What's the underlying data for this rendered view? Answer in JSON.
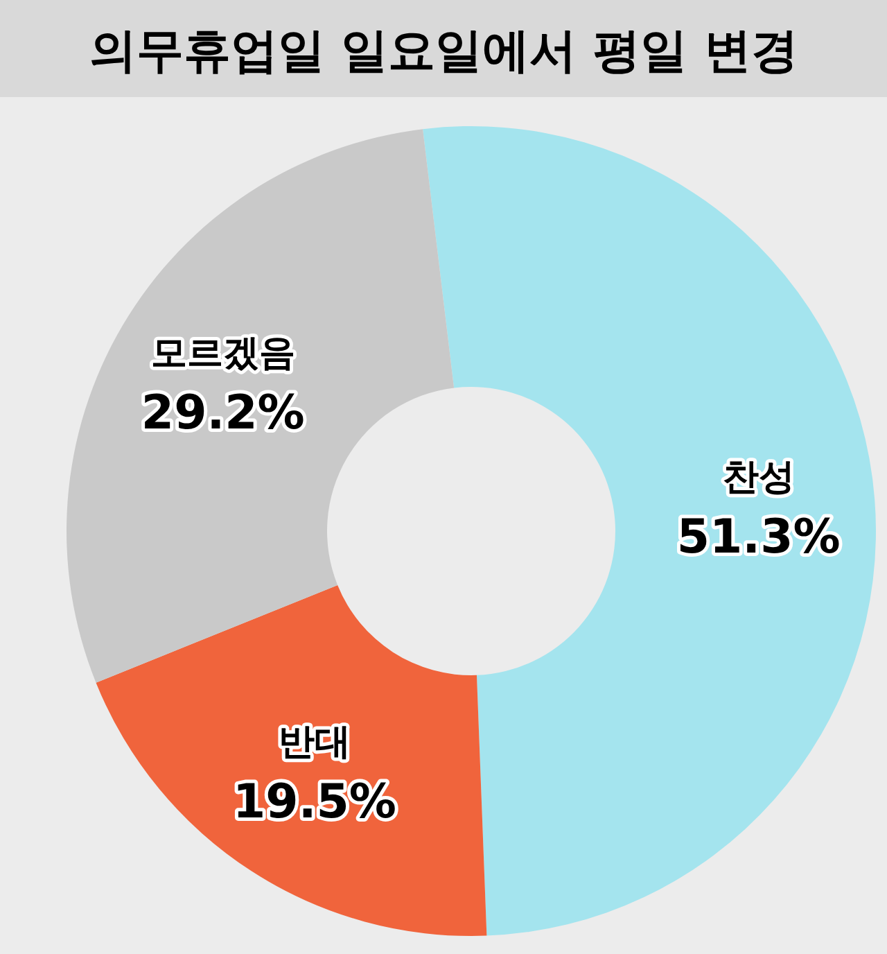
{
  "chart_data": {
    "type": "donut",
    "title": "의무휴업일 일요일에서 평일 변경",
    "categories": [
      "찬성",
      "반대",
      "모르겠음"
    ],
    "values": [
      51.3,
      19.5,
      29.2
    ],
    "colors": [
      "#a4e4ee",
      "#f0643c",
      "#c9c9c9"
    ],
    "value_labels": [
      "51.3%",
      "19.5%",
      "29.2%"
    ]
  }
}
